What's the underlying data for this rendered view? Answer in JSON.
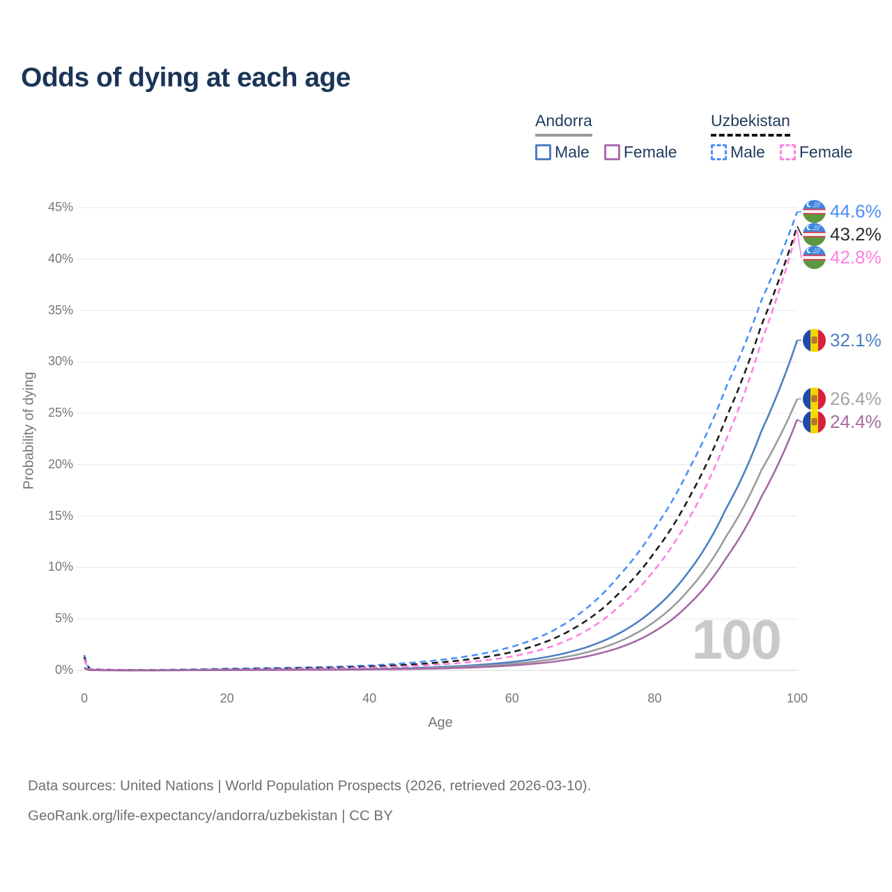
{
  "header": {
    "title": "Odds of dying at each age"
  },
  "legend": {
    "groups": [
      {
        "country": "Andorra",
        "underline_style": "solid",
        "underline_color": "#9a9a9a",
        "items": [
          {
            "label": "Male",
            "color": "#4d7ec2",
            "dashed": false
          },
          {
            "label": "Female",
            "color": "#ad6bad",
            "dashed": false
          }
        ]
      },
      {
        "country": "Uzbekistan",
        "underline_style": "dashed",
        "underline_color": "#141414",
        "items": [
          {
            "label": "Male",
            "color": "#4a90f5",
            "dashed": true
          },
          {
            "label": "Female",
            "color": "#ff80e0",
            "dashed": true
          }
        ]
      }
    ]
  },
  "chart_data": {
    "type": "line",
    "title": "Odds of dying at each age",
    "xlabel": "Age",
    "ylabel": "Probability of dying",
    "xlim": [
      0,
      100
    ],
    "ylim": [
      0,
      45
    ],
    "x_ticks": [
      "0",
      "20",
      "40",
      "60",
      "80",
      "100"
    ],
    "y_ticks": [
      "0%",
      "5%",
      "10%",
      "15%",
      "20%",
      "25%",
      "30%",
      "35%",
      "40%",
      "45%"
    ],
    "grid": "horizontal",
    "legend_position": "top-right",
    "watermark": "100",
    "ages": [
      0,
      1,
      5,
      10,
      15,
      20,
      25,
      30,
      35,
      40,
      45,
      50,
      55,
      60,
      65,
      70,
      75,
      80,
      85,
      90,
      95,
      100
    ],
    "series": [
      {
        "name": "Uzbekistan male",
        "country": "Uzbekistan",
        "group": "male",
        "color": "#4a90f5",
        "label_color": "#4a90f5",
        "dashed": true,
        "flag": "uzbekistan",
        "end_label": "44.6%",
        "values": [
          1.5,
          0.12,
          0.05,
          0.05,
          0.09,
          0.16,
          0.21,
          0.27,
          0.35,
          0.48,
          0.7,
          1.02,
          1.52,
          2.3,
          3.6,
          5.8,
          9.2,
          13.8,
          19.8,
          27.5,
          36.0,
          44.6
        ]
      },
      {
        "name": "Uzbekistan combined",
        "country": "Uzbekistan",
        "group": "combined",
        "color": "#1c1c1c",
        "label_color": "#2d2d2d",
        "dashed": true,
        "flag": "uzbekistan",
        "end_label": "43.2%",
        "values": [
          1.3,
          0.1,
          0.04,
          0.04,
          0.07,
          0.12,
          0.16,
          0.21,
          0.27,
          0.37,
          0.53,
          0.78,
          1.17,
          1.78,
          2.85,
          4.65,
          7.5,
          11.5,
          17.0,
          24.5,
          33.6,
          43.2
        ]
      },
      {
        "name": "Uzbekistan female",
        "country": "Uzbekistan",
        "group": "female",
        "color": "#ff80e0",
        "label_color": "#ff80e0",
        "dashed": true,
        "flag": "uzbekistan",
        "end_label": "42.8%",
        "values": [
          1.1,
          0.09,
          0.04,
          0.03,
          0.05,
          0.08,
          0.11,
          0.15,
          0.2,
          0.27,
          0.39,
          0.58,
          0.88,
          1.36,
          2.2,
          3.7,
          6.2,
          9.8,
          15.0,
          22.4,
          32.0,
          42.8
        ]
      },
      {
        "name": "Andorra male",
        "country": "Andorra",
        "group": "male",
        "color": "#4d7ec2",
        "label_color": "#4d7ec2",
        "dashed": false,
        "flag": "andorra",
        "end_label": "32.1%",
        "values": [
          0.3,
          0.03,
          0.01,
          0.01,
          0.03,
          0.06,
          0.07,
          0.08,
          0.1,
          0.14,
          0.21,
          0.33,
          0.52,
          0.82,
          1.32,
          2.15,
          3.6,
          6.0,
          9.8,
          15.7,
          23.3,
          32.1
        ]
      },
      {
        "name": "Andorra combined",
        "country": "Andorra",
        "group": "combined",
        "color": "#9b9b9d",
        "label_color": "#a3a3a3",
        "dashed": false,
        "flag": "andorra",
        "end_label": "26.4%",
        "values": [
          0.27,
          0.02,
          0.01,
          0.01,
          0.02,
          0.04,
          0.05,
          0.06,
          0.08,
          0.11,
          0.16,
          0.25,
          0.4,
          0.63,
          1.02,
          1.67,
          2.8,
          4.75,
          8.0,
          13.0,
          19.5,
          26.4
        ]
      },
      {
        "name": "Andorra female",
        "country": "Andorra",
        "group": "female",
        "color": "#a667a6",
        "label_color": "#a76aa3",
        "dashed": false,
        "flag": "andorra",
        "end_label": "24.4%",
        "values": [
          0.24,
          0.02,
          0.01,
          0.01,
          0.02,
          0.03,
          0.04,
          0.05,
          0.06,
          0.09,
          0.13,
          0.19,
          0.3,
          0.48,
          0.78,
          1.3,
          2.2,
          3.8,
          6.55,
          10.9,
          16.9,
          24.4
        ]
      }
    ]
  },
  "footer": {
    "line1": "Data sources: United Nations | World Population Prospects (2026, retrieved 2026-03-10).",
    "line2": "GeoRank.org/life-expectancy/andorra/uzbekistan | CC BY"
  }
}
